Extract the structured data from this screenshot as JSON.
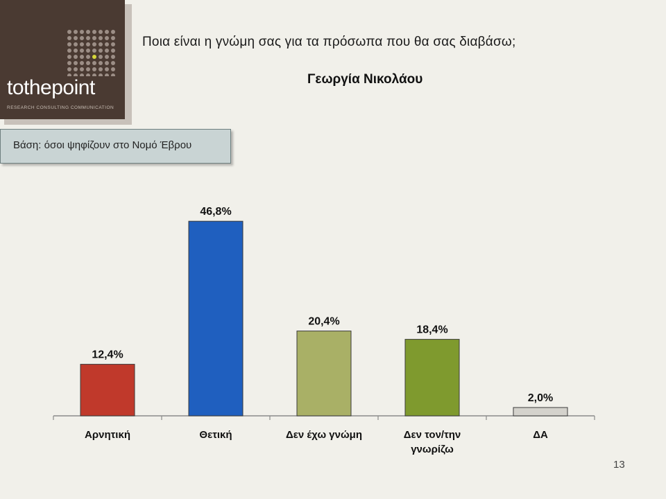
{
  "logo": {
    "word": "tothepoint",
    "tagline": "RESEARCH CONSULTING COMMUNICATION",
    "colors": {
      "background": "#4a3a32",
      "dots": "#9c8e86",
      "accent_dot": "#d6d63a"
    }
  },
  "header": {
    "question": "Ποια είναι η γνώμη σας για τα πρόσωπα που θα σας διαβάσω;",
    "person": "Γεωργία Νικολάου"
  },
  "base_note": "Βάση: όσοι ψηφίζουν στο  Νομό Έβρου",
  "page_number": "13",
  "chart_data": {
    "type": "bar",
    "categories": [
      [
        "Αρνητική"
      ],
      [
        "Θετική"
      ],
      [
        "Δεν έχω γνώμη"
      ],
      [
        "Δεν τον/την",
        "γνωρίζω"
      ],
      [
        "ΔΑ"
      ]
    ],
    "values": [
      12.4,
      46.8,
      20.4,
      18.4,
      2.0
    ],
    "value_labels": [
      "12,4%",
      "46,8%",
      "20,4%",
      "18,4%",
      "2,0%"
    ],
    "colors": [
      "#c0392b",
      "#1f5fbf",
      "#a9b066",
      "#7f9a2e",
      "#d4d2cc"
    ],
    "ylim": [
      0,
      50
    ],
    "grid": false,
    "legend": "none"
  }
}
